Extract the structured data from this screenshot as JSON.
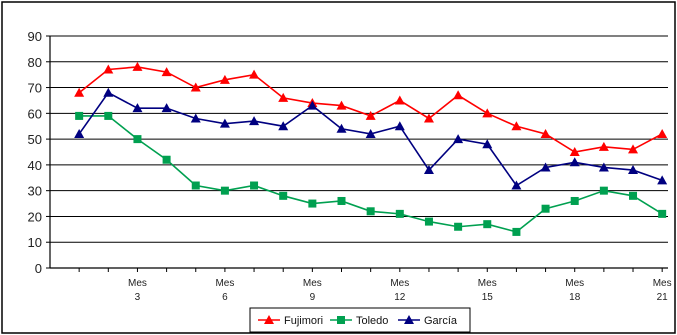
{
  "chart_data": {
    "type": "line",
    "x": [
      1,
      2,
      3,
      4,
      5,
      6,
      7,
      8,
      9,
      10,
      11,
      12,
      13,
      14,
      15,
      16,
      17,
      18,
      19,
      20,
      21
    ],
    "x_tick_labels": [
      {
        "x": 3,
        "top": "Mes",
        "bottom": "3"
      },
      {
        "x": 6,
        "top": "Mes",
        "bottom": "6"
      },
      {
        "x": 9,
        "top": "Mes",
        "bottom": "9"
      },
      {
        "x": 12,
        "top": "Mes",
        "bottom": "12"
      },
      {
        "x": 15,
        "top": "Mes",
        "bottom": "15"
      },
      {
        "x": 18,
        "top": "Mes",
        "bottom": "18"
      },
      {
        "x": 21,
        "top": "Mes",
        "bottom": "21"
      }
    ],
    "y_ticks": [
      "0",
      "10",
      "20",
      "30",
      "40",
      "50",
      "60",
      "70",
      "80",
      "90"
    ],
    "ylim": [
      0,
      90
    ],
    "grid": true,
    "legend_position": "bottom",
    "series": [
      {
        "name": "Fujimori",
        "color": "#ff0000",
        "marker": "triangle",
        "values": [
          68,
          77,
          78,
          76,
          70,
          73,
          75,
          66,
          64,
          63,
          59,
          65,
          58,
          67,
          60,
          55,
          52,
          45,
          47,
          46,
          52
        ]
      },
      {
        "name": "Toledo",
        "color": "#00a050",
        "marker": "square",
        "values": [
          59,
          59,
          50,
          42,
          32,
          30,
          32,
          28,
          25,
          26,
          22,
          21,
          18,
          16,
          17,
          14,
          23,
          26,
          30,
          28,
          21
        ]
      },
      {
        "name": "García",
        "color": "#000080",
        "marker": "triangle",
        "values": [
          52,
          68,
          62,
          62,
          58,
          56,
          57,
          55,
          63,
          54,
          52,
          55,
          38,
          50,
          48,
          32,
          39,
          41,
          39,
          38,
          34
        ]
      }
    ]
  }
}
